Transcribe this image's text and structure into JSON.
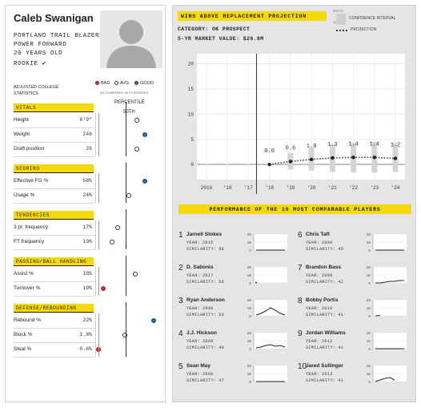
{
  "player": {
    "name": "Caleb Swanigan",
    "team": "PORTLAND TRAIL BLAZERS",
    "position": "POWER FORWARD",
    "age": "20 YEARS OLD",
    "status": "ROOKIE ✔"
  },
  "adjusted_label": "ADJUSTED COLLEGE STATISTICS",
  "legend": {
    "bad": "BAD",
    "avg": "AVG.",
    "good": "GOOD",
    "note": "AS COMPARED WITH ROOKIES"
  },
  "percentile_header": "PERCENTILE",
  "percentile_mid": "50TH",
  "categories": [
    {
      "title": "VITALS",
      "stats": [
        {
          "label": "Height",
          "value": "6'9\"",
          "pct": 0.7,
          "rating": "avg"
        },
        {
          "label": "Weight",
          "value": "246",
          "pct": 0.83,
          "rating": "good"
        },
        {
          "label": "Draft position",
          "value": "26",
          "pct": 0.7,
          "rating": "avg"
        }
      ]
    },
    {
      "title": "SCORING",
      "stats": [
        {
          "label": "Effective FG %",
          "value": "58%",
          "pct": 0.83,
          "rating": "good"
        },
        {
          "label": "Usage %",
          "value": "24%",
          "pct": 0.56,
          "rating": "avg"
        }
      ]
    },
    {
      "title": "TENDENCIES",
      "stats": [
        {
          "label": "3 pt. frequency",
          "value": "17%",
          "pct": 0.36,
          "rating": "avg"
        },
        {
          "label": "FT frequency",
          "value": "19%",
          "pct": 0.27,
          "rating": "avg"
        }
      ]
    },
    {
      "title": "PASSING/BALL HANDLING",
      "stats": [
        {
          "label": "Assist %",
          "value": "18%",
          "pct": 0.67,
          "rating": "avg"
        },
        {
          "label": "Turnover %",
          "value": "19%",
          "pct": 0.11,
          "rating": "bad"
        }
      ]
    },
    {
      "title": "DEFENSE/REBOUNDING",
      "stats": [
        {
          "label": "Rebound %",
          "value": "22%",
          "pct": 0.99,
          "rating": "good"
        },
        {
          "label": "Block %",
          "value": "1.8%",
          "pct": 0.48,
          "rating": "avg"
        },
        {
          "label": "Steal %",
          "value": "0.6%",
          "pct": 0.03,
          "rating": "bad"
        }
      ]
    }
  ],
  "war": {
    "title": "WINS ABOVE REPLACEMENT PROJECTION",
    "category": "CATEGORY: OK PROSPECT",
    "market_value": "5-YR MARKET VALUE: $26.8m",
    "legend_ci": "CONFIDENCE INTERVAL",
    "legend_proj": "PROJECTION",
    "ci_tick_hi": "90TH %",
    "ci_tick_lo": "10TH %"
  },
  "chart_data": {
    "type": "line",
    "title": "WINS ABOVE REPLACEMENT PROJECTION",
    "x_labels": [
      "2016",
      "'16",
      "'17",
      "'18",
      "'19",
      "'20",
      "'21",
      "'22",
      "'23",
      "'24"
    ],
    "y_ticks": [
      0,
      5,
      10,
      15,
      20
    ],
    "ylim": [
      -3,
      22
    ],
    "grid": true,
    "series": [
      {
        "name": "PROJECTION",
        "x": [
          "'18",
          "'19",
          "'20",
          "'21",
          "'22",
          "'23",
          "'24"
        ],
        "values": [
          0.0,
          0.6,
          1.0,
          1.3,
          1.4,
          1.4,
          1.2
        ],
        "labels": [
          "0.0",
          "0.6",
          "1.0",
          "1.3",
          "1.4",
          "1.4",
          "1.2"
        ],
        "ci_low": [
          0.0,
          -1.0,
          -1.2,
          -1.5,
          -1.6,
          -1.6,
          -1.5
        ],
        "ci_high": [
          0.0,
          2.3,
          3.3,
          4.0,
          4.3,
          4.5,
          4.2
        ]
      }
    ]
  },
  "comparables": {
    "title": "PERFORMANCE OF THE 10 MOST COMPARABLE PLAYERS",
    "year_label": "YEAR:",
    "sim_label": "SIMILARITY:",
    "spark_ticks": [
      "20",
      "10",
      "0"
    ],
    "players": [
      {
        "rank": "1",
        "name": "Jarnell Stokes",
        "year": "2015",
        "similarity": "58",
        "values": [
          0,
          0,
          0,
          0,
          0,
          0,
          0
        ]
      },
      {
        "rank": "2",
        "name": "D. Sabonis",
        "year": "2017",
        "similarity": "58",
        "values": [
          0.5
        ]
      },
      {
        "rank": "3",
        "name": "Ryan Anderson",
        "year": "2009",
        "similarity": "53",
        "values": [
          1,
          3,
          6,
          10,
          7,
          3,
          1
        ]
      },
      {
        "rank": "4",
        "name": "J.J. Hickson",
        "year": "2009",
        "similarity": "49",
        "values": [
          1,
          2,
          4,
          5,
          3,
          4,
          2
        ]
      },
      {
        "rank": "5",
        "name": "Sean May",
        "year": "2006",
        "similarity": "47",
        "values": [
          0,
          0,
          0,
          0,
          0,
          0,
          0
        ]
      },
      {
        "rank": "6",
        "name": "Chris Taft",
        "year": "2006",
        "similarity": "45",
        "values": [
          0,
          0,
          0,
          0,
          0,
          0,
          0
        ]
      },
      {
        "rank": "7",
        "name": "Brandon Bass",
        "year": "2006",
        "similarity": "42",
        "values": [
          0,
          0,
          1,
          2,
          2,
          3,
          3
        ]
      },
      {
        "rank": "8",
        "name": "Bobby Portis",
        "year": "2016",
        "similarity": "41",
        "values": [
          0,
          0.5
        ]
      },
      {
        "rank": "9",
        "name": "Jordan Williams",
        "year": "2012",
        "similarity": "41",
        "values": [
          0,
          0,
          0,
          0,
          0,
          0,
          0
        ]
      },
      {
        "rank": "10",
        "name": "Jared Sullinger",
        "year": "2013",
        "similarity": "41",
        "values": [
          0,
          2,
          4,
          5,
          2
        ]
      }
    ]
  },
  "colors": {
    "accent": "#f5d90a",
    "good": "#2b6fa3",
    "bad": "#c83a3a",
    "panel": "#e5e5e5"
  }
}
